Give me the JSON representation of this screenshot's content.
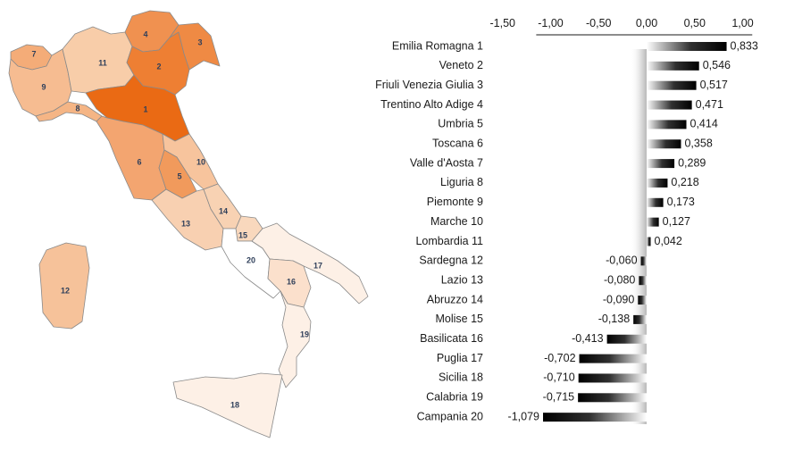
{
  "chart_data": {
    "type": "bar",
    "orientation": "horizontal",
    "categories": [
      "Emilia Romagna 1",
      "Veneto  2",
      "Friuli Venezia Giulia 3",
      "Trentino Alto Adige 4",
      "Umbria 5",
      "Toscana 6",
      "Valle d'Aosta 7",
      "Liguria 8",
      "Piemonte 9",
      "Marche 10",
      "Lombardia 11",
      "Sardegna 12",
      "Lazio 13",
      "Abruzzo 14",
      "Molise 15",
      "Basilicata 16",
      "Puglia 17",
      "Sicilia 18",
      "Calabria 19",
      "Campania 20"
    ],
    "values": [
      0.833,
      0.546,
      0.517,
      0.471,
      0.414,
      0.358,
      0.289,
      0.218,
      0.173,
      0.127,
      0.042,
      -0.06,
      -0.08,
      -0.09,
      -0.138,
      -0.413,
      -0.702,
      -0.71,
      -0.715,
      -1.079
    ],
    "value_labels": [
      "0,833",
      "0,546",
      "0,517",
      "0,471",
      "0,414",
      "0,358",
      "0,289",
      "0,218",
      "0,173",
      "0,127",
      "0,042",
      "-0,060",
      "-0,080",
      "-0,090",
      "-0,138",
      "-0,413",
      "-0,702",
      "-0,710",
      "-0,715",
      "-1,079"
    ],
    "x_ticks": [
      "-1,50",
      "-1,00",
      "-0,50",
      "0,00",
      "0,50",
      "1,00"
    ],
    "xlim": [
      -1.5,
      1.1
    ],
    "axis_position": "top",
    "grid": false,
    "bar_style": "gradient-black"
  },
  "map": {
    "regions": [
      {
        "id": "1",
        "color": "#ea6a14"
      },
      {
        "id": "2",
        "color": "#ee7f33"
      },
      {
        "id": "3",
        "color": "#ef8a44"
      },
      {
        "id": "4",
        "color": "#f09150"
      },
      {
        "id": "5",
        "color": "#f19a5c"
      },
      {
        "id": "6",
        "color": "#f3a570"
      },
      {
        "id": "7",
        "color": "#f4ac78"
      },
      {
        "id": "8",
        "color": "#f5b585"
      },
      {
        "id": "9",
        "color": "#f6bc91"
      },
      {
        "id": "10",
        "color": "#f7c49d"
      },
      {
        "id": "11",
        "color": "#f8cda9"
      },
      {
        "id": "12",
        "color": "#f6c29a"
      },
      {
        "id": "13",
        "color": "#f8d0b1"
      },
      {
        "id": "14",
        "color": "#f8d2b3"
      },
      {
        "id": "15",
        "color": "#f9d8bd"
      },
      {
        "id": "16",
        "color": "#fbe0cc"
      },
      {
        "id": "17",
        "color": "#fdf0e6"
      },
      {
        "id": "18",
        "color": "#fdf0e6"
      },
      {
        "id": "19",
        "color": "#fdf0e6"
      },
      {
        "id": "20",
        "color": "#ffffff"
      }
    ]
  }
}
